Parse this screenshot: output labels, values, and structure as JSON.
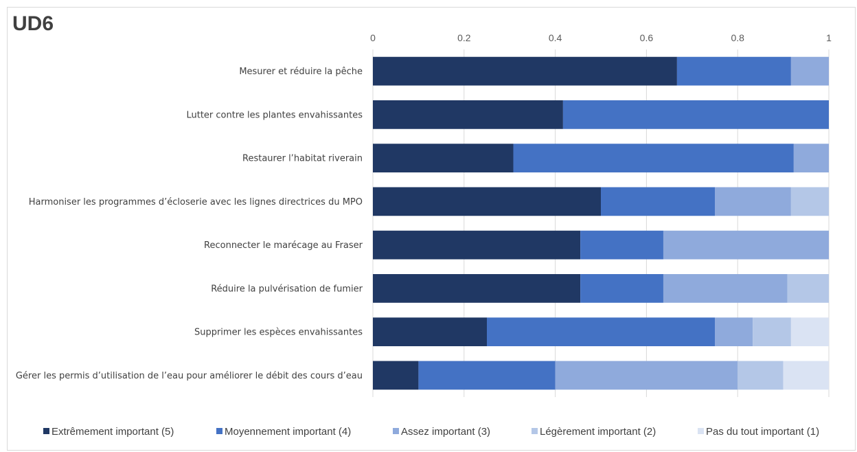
{
  "chart_data": {
    "type": "bar",
    "orientation": "horizontal",
    "stacked": true,
    "title": "UD6",
    "xlim": [
      0,
      1
    ],
    "x_ticks": [
      "0",
      "0.2",
      "0.4",
      "0.6",
      "0.8",
      "1"
    ],
    "x_tick_values": [
      0,
      0.2,
      0.4,
      0.6,
      0.8,
      1
    ],
    "grid": true,
    "legend_position": "bottom",
    "categories": [
      "Mesurer et réduire la pêche",
      "Lutter contre les plantes envahissantes",
      "Restaurer l’habitat riverain",
      "Harmoniser les programmes d’écloserie avec les lignes directrices du MPO",
      "Reconnecter le marécage au Fraser",
      "Réduire la pulvérisation de fumier",
      "Supprimer les espèces envahissantes",
      "Gérer les permis d’utilisation de l’eau pour améliorer le débit des cours d’eau"
    ],
    "series": [
      {
        "name": "Extrêmement important (5)",
        "color": "#203864",
        "values": [
          0.667,
          0.417,
          0.308,
          0.5,
          0.455,
          0.455,
          0.25,
          0.1
        ]
      },
      {
        "name": "Moyennement important (4)",
        "color": "#4472c4",
        "values": [
          0.25,
          0.583,
          0.615,
          0.25,
          0.182,
          0.182,
          0.5,
          0.3
        ]
      },
      {
        "name": "Assez important (3)",
        "color": "#8faadc",
        "values": [
          0.083,
          0,
          0.077,
          0.167,
          0.363,
          0.272,
          0.083,
          0.4
        ]
      },
      {
        "name": "Légèrement important (2)",
        "color": "#b4c7e7",
        "values": [
          0,
          0,
          0,
          0.083,
          0,
          0.091,
          0.084,
          0.1
        ]
      },
      {
        "name": "Pas du tout important (1)",
        "color": "#dae3f3",
        "values": [
          0,
          0,
          0,
          0,
          0,
          0,
          0.083,
          0.1
        ]
      }
    ]
  }
}
